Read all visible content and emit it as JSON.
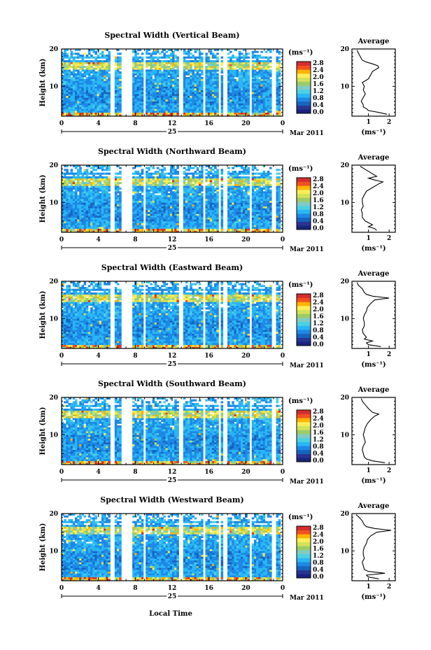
{
  "figure": {
    "x_axis_label": "Local Time",
    "date_label": "Mar 2011",
    "day_label": "25",
    "colorbar_unit": "(ms⁻¹)",
    "colorbar_ticks": [
      "0.0",
      "0.4",
      "0.8",
      "1.2",
      "1.6",
      "2.0",
      "2.4",
      "2.8"
    ],
    "colormap": [
      "#1a237e",
      "#283593",
      "#1565c0",
      "#1e88e5",
      "#29b6f6",
      "#4dd0e1",
      "#80cbc4",
      "#9ccc65",
      "#d4e157",
      "#ffee58",
      "#ffb300",
      "#f4511e",
      "#d32f2f"
    ],
    "avg_title": "Average",
    "avg_xlabel": "(ms⁻¹)",
    "ylabel": "Height (km)"
  },
  "chart_data": [
    {
      "type": "heatmap",
      "title": "Spectral Width (Vertical Beam)",
      "xlabel": "Local Time",
      "ylabel": "Height (km)",
      "x_ticks": [
        "0",
        "4",
        "8",
        "12",
        "16",
        "20",
        "0"
      ],
      "y_ticks": [
        "10",
        "20"
      ],
      "xlim": [
        0,
        24
      ],
      "ylim": [
        2,
        20
      ],
      "clim": [
        0.0,
        2.8
      ],
      "data_gaps_hours": [
        [
          5.2,
          5.8
        ],
        [
          6.4,
          7.6
        ],
        [
          8.8,
          9.0
        ],
        [
          12.8,
          13.3
        ],
        [
          15.4,
          15.6
        ],
        [
          17.0,
          17.3
        ],
        [
          17.6,
          17.9
        ],
        [
          20.4,
          20.6
        ],
        [
          22.8,
          23.2
        ],
        [
          23.7,
          24.0
        ]
      ],
      "average_profile": {
        "xlabel": "(ms⁻¹)",
        "x_ticks": [
          "1",
          "2"
        ],
        "xlim": [
          0.2,
          2.3
        ],
        "height_km": [
          2.5,
          3,
          3.5,
          4,
          4.5,
          5,
          6,
          7,
          8,
          9,
          10,
          11,
          12,
          13,
          14,
          15,
          15.5,
          16,
          16.5,
          17,
          18,
          19,
          19.7
        ],
        "width_ms": [
          1.9,
          1.5,
          1.0,
          0.9,
          0.75,
          0.75,
          0.65,
          0.75,
          0.85,
          0.75,
          0.8,
          0.7,
          1.0,
          1.1,
          1.2,
          1.5,
          1.45,
          1.2,
          0.9,
          0.7,
          0.6,
          0.5,
          0.45
        ]
      }
    },
    {
      "type": "heatmap",
      "title": "Spectral Width (Northward Beam)",
      "xlabel": "Local Time",
      "ylabel": "Height (km)",
      "x_ticks": [
        "0",
        "4",
        "8",
        "12",
        "16",
        "20",
        "0"
      ],
      "y_ticks": [
        "10",
        "20"
      ],
      "xlim": [
        0,
        24
      ],
      "ylim": [
        2,
        20
      ],
      "clim": [
        0.0,
        2.8
      ],
      "data_gaps_hours": [
        [
          5.2,
          5.8
        ],
        [
          6.4,
          7.6
        ],
        [
          8.8,
          9.0
        ],
        [
          12.8,
          13.3
        ],
        [
          15.4,
          15.6
        ],
        [
          17.0,
          17.3
        ],
        [
          17.6,
          17.9
        ],
        [
          20.4,
          20.6
        ],
        [
          22.8,
          23.2
        ],
        [
          23.7,
          24.0
        ]
      ],
      "average_profile": {
        "xlabel": "(ms⁻¹)",
        "x_ticks": [
          "1",
          "2"
        ],
        "xlim": [
          0.2,
          2.3
        ],
        "height_km": [
          2.5,
          3,
          3.5,
          4,
          5,
          6,
          7,
          8,
          9,
          10,
          11,
          12,
          13,
          14,
          15,
          15.5,
          16,
          16.5,
          17,
          18,
          19,
          19.7
        ],
        "width_ms": [
          1.4,
          1.3,
          1.0,
          1.2,
          0.85,
          0.7,
          0.7,
          0.65,
          0.75,
          0.7,
          0.7,
          0.8,
          0.9,
          1.2,
          1.5,
          1.7,
          1.3,
          1.0,
          1.4,
          1.1,
          0.8,
          0.6
        ]
      }
    },
    {
      "type": "heatmap",
      "title": "Spectral Width (Eastward Beam)",
      "xlabel": "Local Time",
      "ylabel": "Height (km)",
      "x_ticks": [
        "0",
        "4",
        "8",
        "12",
        "16",
        "20",
        "0"
      ],
      "y_ticks": [
        "10",
        "20"
      ],
      "xlim": [
        0,
        24
      ],
      "ylim": [
        2,
        20
      ],
      "clim": [
        0.0,
        2.8
      ],
      "data_gaps_hours": [
        [
          5.2,
          5.8
        ],
        [
          6.4,
          7.6
        ],
        [
          8.8,
          9.0
        ],
        [
          12.8,
          13.3
        ],
        [
          15.4,
          15.6
        ],
        [
          17.0,
          17.3
        ],
        [
          17.6,
          17.9
        ],
        [
          20.4,
          20.6
        ],
        [
          22.8,
          23.2
        ],
        [
          23.7,
          24.0
        ]
      ],
      "average_profile": {
        "xlabel": "(ms⁻¹)",
        "x_ticks": [
          "1",
          "2"
        ],
        "xlim": [
          0.2,
          2.3
        ],
        "height_km": [
          2.5,
          3,
          3.5,
          4,
          4.5,
          5,
          6,
          7,
          8,
          9,
          10,
          11,
          12,
          13,
          14,
          15,
          15.5,
          16,
          16.5,
          17,
          18,
          19,
          19.7
        ],
        "width_ms": [
          1.6,
          1.0,
          0.9,
          1.2,
          0.8,
          0.9,
          0.75,
          0.7,
          0.8,
          0.8,
          0.75,
          0.8,
          0.9,
          0.95,
          1.1,
          1.3,
          2.0,
          1.2,
          0.9,
          0.8,
          0.7,
          0.5,
          0.45
        ]
      }
    },
    {
      "type": "heatmap",
      "title": "Spectral Width (Southward Beam)",
      "xlabel": "Local Time",
      "ylabel": "Height (km)",
      "x_ticks": [
        "0",
        "4",
        "8",
        "12",
        "16",
        "20",
        "0"
      ],
      "y_ticks": [
        "10",
        "20"
      ],
      "xlim": [
        0,
        24
      ],
      "ylim": [
        2,
        20
      ],
      "clim": [
        0.0,
        2.8
      ],
      "data_gaps_hours": [
        [
          5.2,
          5.8
        ],
        [
          6.4,
          7.6
        ],
        [
          8.8,
          9.0
        ],
        [
          12.8,
          13.3
        ],
        [
          15.4,
          15.6
        ],
        [
          17.0,
          17.3
        ],
        [
          17.6,
          17.9
        ],
        [
          20.4,
          20.6
        ],
        [
          22.8,
          23.2
        ],
        [
          23.7,
          24.0
        ]
      ],
      "average_profile": {
        "xlabel": "(ms⁻¹)",
        "x_ticks": [
          "1",
          "2"
        ],
        "xlim": [
          0.2,
          2.3
        ],
        "height_km": [
          2.5,
          3,
          3.5,
          4,
          5,
          6,
          7,
          8,
          9,
          10,
          11,
          12,
          13,
          14,
          15,
          15.5,
          16,
          17,
          18,
          19,
          19.7
        ],
        "width_ms": [
          1.8,
          1.2,
          0.9,
          0.8,
          0.75,
          0.7,
          0.75,
          0.85,
          0.8,
          0.75,
          0.8,
          0.85,
          0.95,
          1.1,
          1.3,
          1.5,
          1.2,
          1.0,
          0.85,
          0.7,
          0.65
        ]
      }
    },
    {
      "type": "heatmap",
      "title": "Spectral Width (Westward Beam)",
      "xlabel": "Local Time",
      "ylabel": "Height (km)",
      "x_ticks": [
        "0",
        "4",
        "8",
        "12",
        "16",
        "20",
        "0"
      ],
      "y_ticks": [
        "10",
        "20"
      ],
      "xlim": [
        0,
        24
      ],
      "ylim": [
        2,
        20
      ],
      "clim": [
        0.0,
        2.8
      ],
      "data_gaps_hours": [
        [
          5.2,
          5.8
        ],
        [
          6.4,
          7.6
        ],
        [
          8.8,
          9.0
        ],
        [
          12.8,
          13.3
        ],
        [
          15.4,
          15.6
        ],
        [
          17.0,
          17.3
        ],
        [
          17.6,
          17.9
        ],
        [
          20.4,
          20.6
        ],
        [
          22.8,
          23.2
        ],
        [
          23.7,
          24.0
        ]
      ],
      "average_profile": {
        "xlabel": "(ms⁻¹)",
        "x_ticks": [
          "1",
          "2"
        ],
        "xlim": [
          0.2,
          2.3
        ],
        "height_km": [
          2.5,
          3,
          3.5,
          4,
          4.5,
          5,
          6,
          7,
          8,
          9,
          10,
          11,
          12,
          13,
          14,
          15,
          15.5,
          16,
          16.5,
          17,
          18,
          19,
          19.7
        ],
        "width_ms": [
          1.5,
          1.0,
          0.9,
          1.8,
          1.0,
          0.8,
          0.75,
          0.7,
          0.8,
          0.75,
          0.75,
          0.8,
          0.9,
          0.95,
          1.1,
          1.4,
          2.1,
          1.3,
          0.9,
          0.8,
          0.7,
          0.55,
          0.4
        ]
      }
    }
  ]
}
